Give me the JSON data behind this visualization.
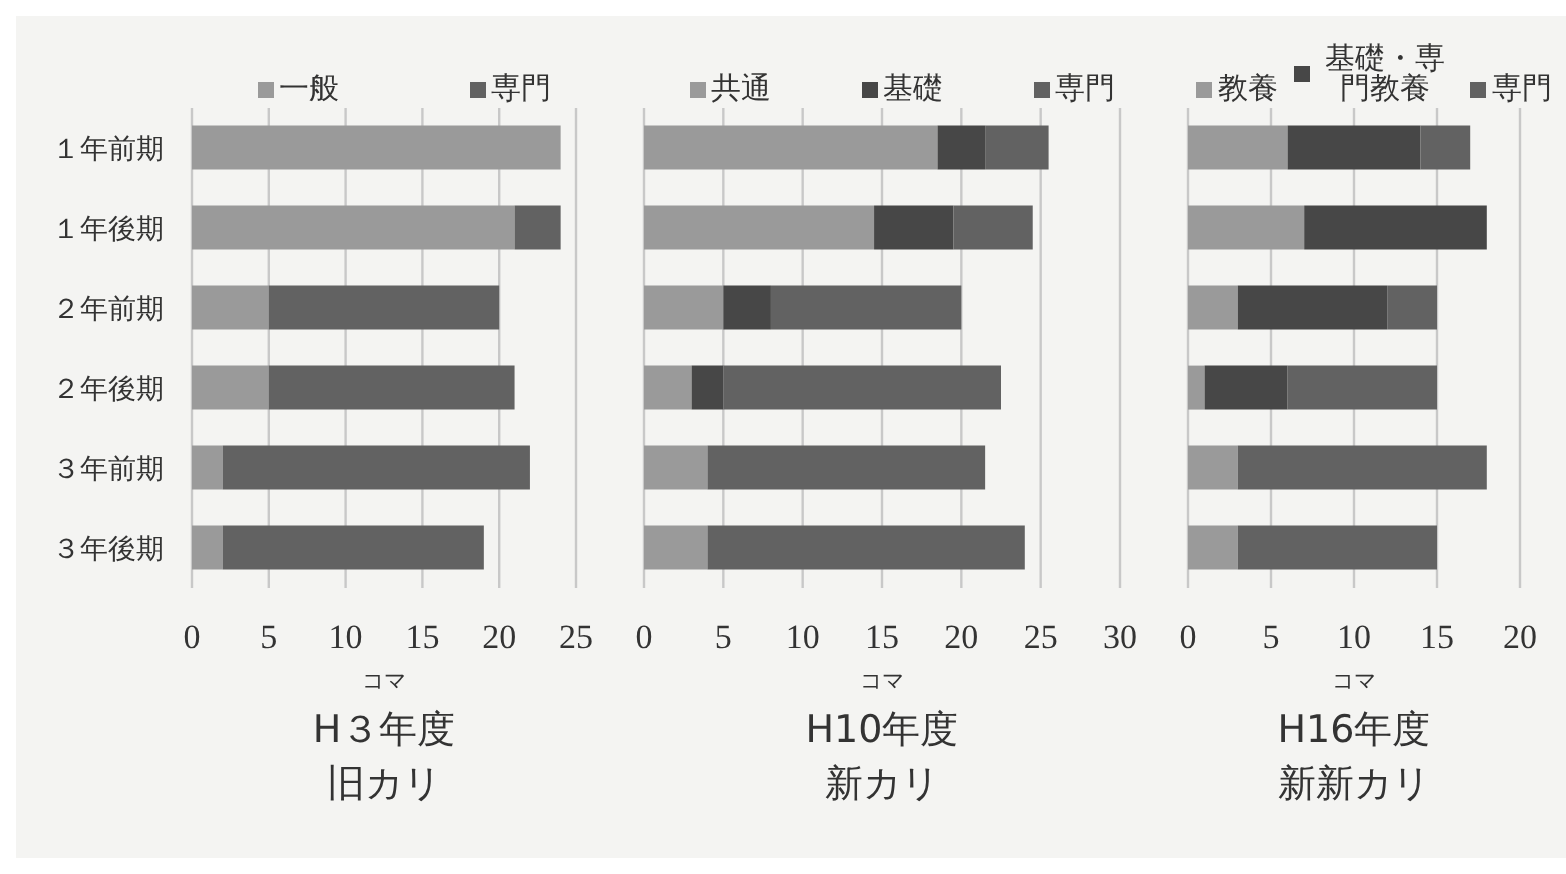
{
  "chart_data": [
    {
      "type": "bar",
      "orientation": "horizontal",
      "stacked": true,
      "title": "H３年度",
      "subtitle": "旧カリ",
      "xlabel": "コマ",
      "categories": [
        "１年前期",
        "１年後期",
        "２年前期",
        "２年後期",
        "３年前期",
        "３年後期"
      ],
      "xlim": [
        0,
        25
      ],
      "xticks": [
        0,
        5,
        10,
        15,
        20,
        25
      ],
      "grid": "x",
      "legend": "top",
      "series": [
        {
          "name": "一般",
          "color": "#9a9a9a",
          "values": [
            24,
            21,
            5,
            5,
            2,
            2
          ]
        },
        {
          "name": "専門",
          "color": "#626262",
          "values": [
            0,
            3,
            15,
            16,
            20,
            17
          ]
        }
      ]
    },
    {
      "type": "bar",
      "orientation": "horizontal",
      "stacked": true,
      "title": "H10年度",
      "subtitle": "新カリ",
      "xlabel": "コマ",
      "categories": [
        null,
        null,
        null,
        null,
        null,
        null
      ],
      "xlim": [
        0,
        30
      ],
      "xticks": [
        0,
        5,
        10,
        15,
        20,
        25,
        30
      ],
      "grid": "x",
      "legend": "top",
      "tick_labels": "x",
      "series": [
        {
          "name": "共通",
          "color": "#9a9a9a",
          "values": [
            18.5,
            14.5,
            5,
            3,
            4,
            4
          ]
        },
        {
          "name": "基礎",
          "color": "#474747",
          "values": [
            3,
            5,
            3,
            2,
            0,
            0
          ]
        },
        {
          "name": "専門",
          "color": "#626262",
          "values": [
            4,
            5,
            12,
            17.5,
            17.5,
            20
          ]
        }
      ]
    },
    {
      "type": "bar",
      "orientation": "horizontal",
      "stacked": true,
      "title": "H16年度",
      "subtitle": "新新カリ",
      "xlabel": "コマ",
      "categories": [
        null,
        null,
        null,
        null,
        null,
        null
      ],
      "xlim": [
        0,
        20
      ],
      "xticks": [
        0,
        5,
        10,
        15,
        20
      ],
      "grid": "x",
      "legend": "top",
      "tick_labels": "x",
      "series": [
        {
          "name": "教養",
          "color": "#9a9a9a",
          "values": [
            6,
            7,
            3,
            1,
            3,
            3
          ]
        },
        {
          "name": "基礎・専門教養",
          "color": "#474747",
          "values": [
            8,
            11,
            9,
            5,
            0,
            0
          ]
        },
        {
          "name": "専門",
          "color": "#626262",
          "values": [
            3,
            0,
            3,
            9,
            15,
            12
          ]
        }
      ]
    }
  ]
}
